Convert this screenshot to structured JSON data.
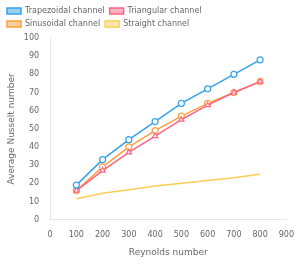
{
  "chart_data": {
    "type": "line",
    "xlabel": "Reynolds number",
    "ylabel": "Average Nusselt number",
    "x": [
      100,
      200,
      300,
      400,
      500,
      600,
      700,
      800
    ],
    "series": [
      {
        "name": "Trapezoidal channel",
        "marker": "circle",
        "values": [
          19,
          33,
          44,
          54,
          64,
          72,
          80,
          88
        ]
      },
      {
        "name": "Triangular channel",
        "marker": "triangle",
        "values": [
          16,
          27,
          37,
          46,
          55,
          63,
          70,
          76
        ]
      },
      {
        "name": "Sinusoidal channel",
        "marker": "circle",
        "values": [
          16,
          29,
          40,
          49,
          57,
          64,
          70,
          76
        ]
      },
      {
        "name": "Straight channel",
        "marker": "none",
        "values": [
          11.5,
          14.5,
          16.5,
          18.5,
          20,
          21.5,
          23,
          25
        ]
      }
    ],
    "xlim": [
      0,
      900
    ],
    "ylim": [
      0,
      100
    ],
    "xticks": [
      0,
      100,
      200,
      300,
      400,
      500,
      600,
      700,
      800,
      900
    ],
    "yticks": [
      0,
      10,
      20,
      30,
      40,
      50,
      60,
      70,
      80,
      90,
      100
    ],
    "grid": false,
    "legend": "upper left"
  }
}
